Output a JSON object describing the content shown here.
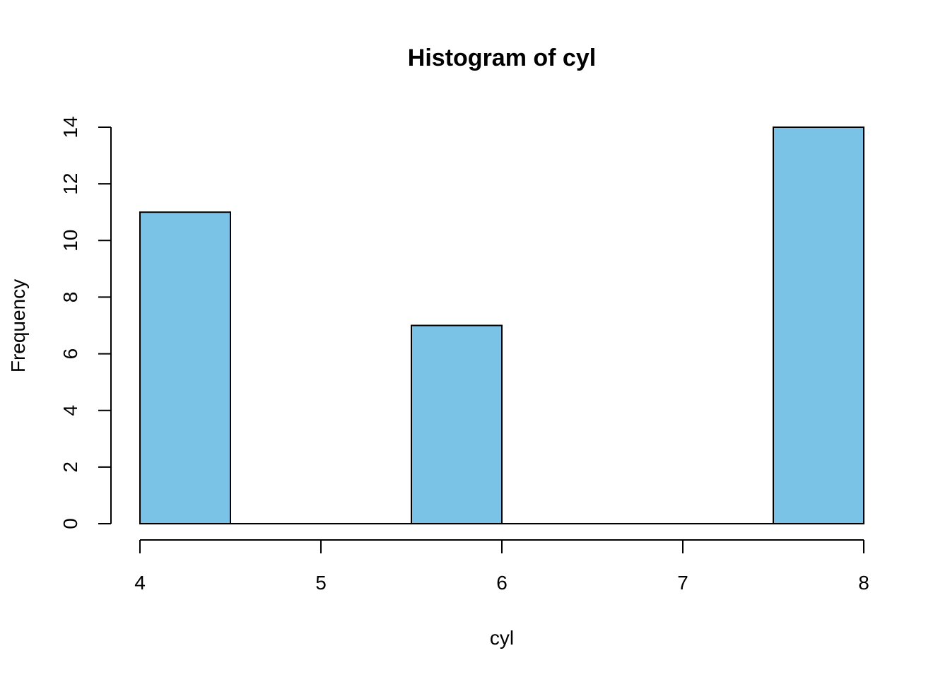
{
  "chart_data": {
    "type": "bar",
    "title": "Histogram of  cyl",
    "xlabel": "cyl",
    "ylabel": "Frequency",
    "x_ticks": [
      4,
      5,
      6,
      7,
      8
    ],
    "y_ticks": [
      0,
      2,
      4,
      6,
      8,
      10,
      12,
      14
    ],
    "xlim": [
      4,
      8
    ],
    "ylim": [
      0,
      14
    ],
    "bins": [
      {
        "x0": 4.0,
        "x1": 4.5,
        "count": 11
      },
      {
        "x0": 4.5,
        "x1": 5.0,
        "count": 0
      },
      {
        "x0": 5.0,
        "x1": 5.5,
        "count": 0
      },
      {
        "x0": 5.5,
        "x1": 6.0,
        "count": 7
      },
      {
        "x0": 6.0,
        "x1": 6.5,
        "count": 0
      },
      {
        "x0": 6.5,
        "x1": 7.0,
        "count": 0
      },
      {
        "x0": 7.0,
        "x1": 7.5,
        "count": 0
      },
      {
        "x0": 7.5,
        "x1": 8.0,
        "count": 14
      }
    ],
    "bar_color": "#7AC3E6",
    "bar_edge_color": "#000000",
    "grid": false,
    "legend": "none"
  }
}
